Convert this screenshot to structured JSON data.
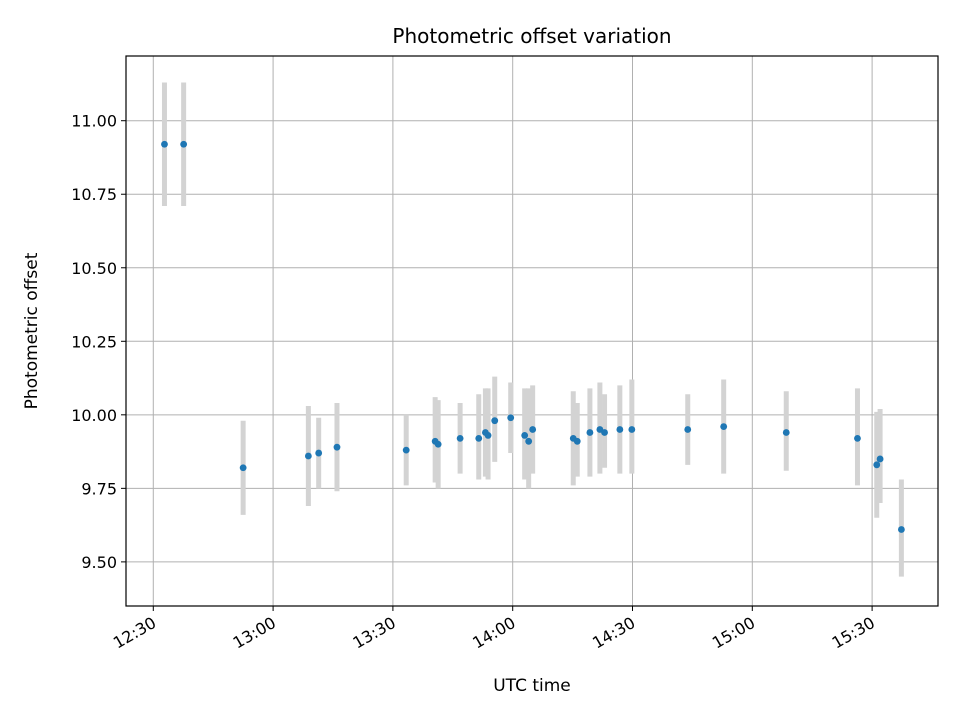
{
  "chart_data": {
    "type": "scatter",
    "title": "Photometric offset variation",
    "xlabel": "UTC time",
    "ylabel": "Photometric offset",
    "x_ticks": [
      "12:30",
      "13:00",
      "13:30",
      "14:00",
      "14:30",
      "15:00",
      "15:30"
    ],
    "y_ticks": [
      "9.50",
      "9.75",
      "10.00",
      "10.25",
      "10.50",
      "10.75",
      "11.00"
    ],
    "xlim": [
      "12:23:10",
      "15:46:30"
    ],
    "ylim": [
      9.35,
      11.22
    ],
    "grid": true,
    "errorbar_color": "#d3d3d3",
    "marker_color": "#1f77b4",
    "points": [
      {
        "time": "12:32:48",
        "y": 10.92,
        "low": 10.71,
        "high": 11.13
      },
      {
        "time": "12:37:36",
        "y": 10.92,
        "low": 10.71,
        "high": 11.13
      },
      {
        "time": "12:52:30",
        "y": 9.82,
        "low": 9.66,
        "high": 9.98
      },
      {
        "time": "13:08:50",
        "y": 9.86,
        "low": 9.69,
        "high": 10.03
      },
      {
        "time": "13:11:25",
        "y": 9.87,
        "low": 9.75,
        "high": 9.99
      },
      {
        "time": "13:16:00",
        "y": 9.89,
        "low": 9.74,
        "high": 10.04
      },
      {
        "time": "13:33:20",
        "y": 9.88,
        "low": 9.76,
        "high": 10.0
      },
      {
        "time": "13:40:35",
        "y": 9.91,
        "low": 9.77,
        "high": 10.06
      },
      {
        "time": "13:41:20",
        "y": 9.9,
        "low": 9.75,
        "high": 10.05
      },
      {
        "time": "13:46:50",
        "y": 9.92,
        "low": 9.8,
        "high": 10.04
      },
      {
        "time": "13:51:30",
        "y": 9.92,
        "low": 9.78,
        "high": 10.07
      },
      {
        "time": "13:53:10",
        "y": 9.94,
        "low": 9.79,
        "high": 10.09
      },
      {
        "time": "13:53:50",
        "y": 9.93,
        "low": 9.78,
        "high": 10.09
      },
      {
        "time": "13:55:30",
        "y": 9.98,
        "low": 9.84,
        "high": 10.13
      },
      {
        "time": "13:59:30",
        "y": 9.99,
        "low": 9.87,
        "high": 10.11
      },
      {
        "time": "14:03:00",
        "y": 9.93,
        "low": 9.78,
        "high": 10.09
      },
      {
        "time": "14:04:00",
        "y": 9.91,
        "low": 9.75,
        "high": 10.09
      },
      {
        "time": "14:05:00",
        "y": 9.95,
        "low": 9.8,
        "high": 10.1
      },
      {
        "time": "14:15:10",
        "y": 9.92,
        "low": 9.76,
        "high": 10.08
      },
      {
        "time": "14:16:10",
        "y": 9.91,
        "low": 9.79,
        "high": 10.04
      },
      {
        "time": "14:19:20",
        "y": 9.94,
        "low": 9.79,
        "high": 10.09
      },
      {
        "time": "14:21:50",
        "y": 9.95,
        "low": 9.8,
        "high": 10.11
      },
      {
        "time": "14:23:00",
        "y": 9.94,
        "low": 9.82,
        "high": 10.07
      },
      {
        "time": "14:26:50",
        "y": 9.95,
        "low": 9.8,
        "high": 10.1
      },
      {
        "time": "14:29:50",
        "y": 9.95,
        "low": 9.8,
        "high": 10.12
      },
      {
        "time": "14:43:50",
        "y": 9.95,
        "low": 9.83,
        "high": 10.07
      },
      {
        "time": "14:52:50",
        "y": 9.96,
        "low": 9.8,
        "high": 10.12
      },
      {
        "time": "15:08:30",
        "y": 9.94,
        "low": 9.81,
        "high": 10.08
      },
      {
        "time": "15:26:20",
        "y": 9.92,
        "low": 9.76,
        "high": 10.09
      },
      {
        "time": "15:31:10",
        "y": 9.83,
        "low": 9.65,
        "high": 10.01
      },
      {
        "time": "15:32:00",
        "y": 9.85,
        "low": 9.7,
        "high": 10.02
      },
      {
        "time": "15:37:20",
        "y": 9.61,
        "low": 9.45,
        "high": 9.78
      }
    ]
  }
}
